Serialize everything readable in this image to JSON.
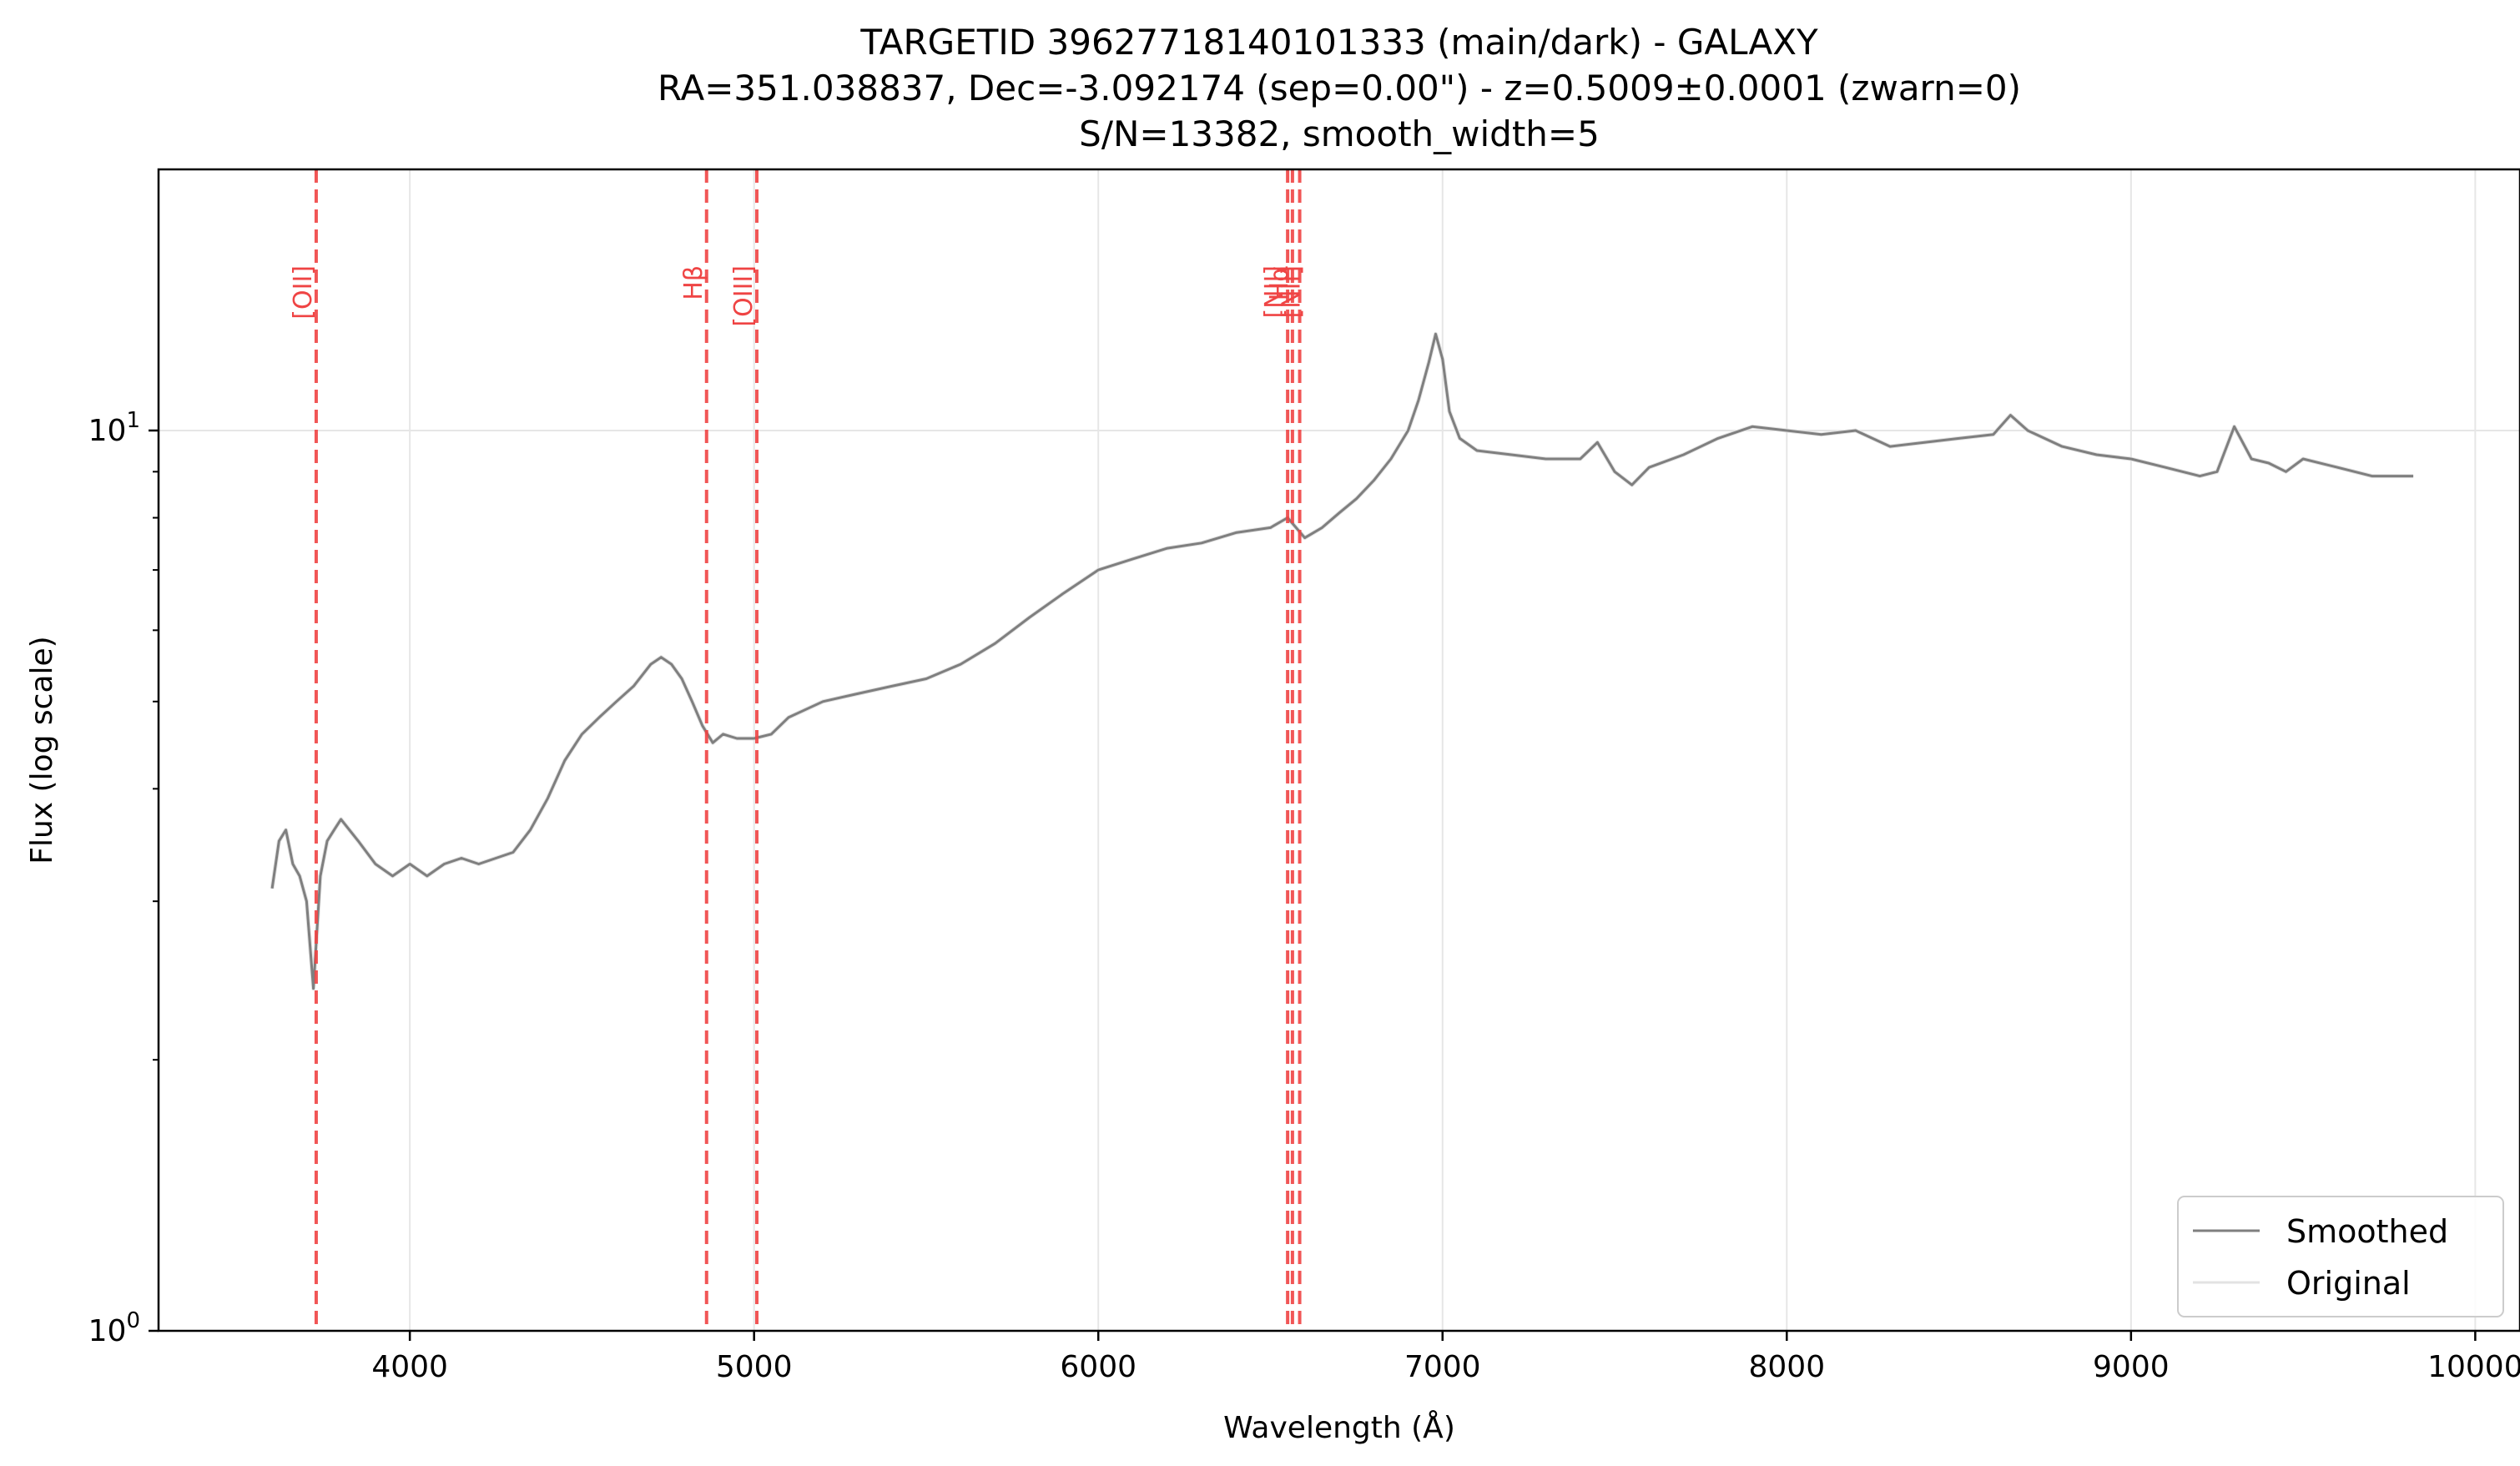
{
  "chart_data": {
    "type": "line",
    "title": [
      "TARGETID 39627718140101333 (main/dark) - GALAXY",
      "RA=351.038837, Dec=-3.092174 (sep=0.00\") - z=0.5009±0.0001 (zwarn=0)",
      "S/N=13382, smooth_width=5"
    ],
    "xlabel": "Wavelength (Å)",
    "ylabel": "Flux (log scale)",
    "xlim": [
      3270,
      10130
    ],
    "ylim": [
      1,
      19.5
    ],
    "yscale": "log",
    "grid": true,
    "x_ticks": [
      4000,
      5000,
      6000,
      7000,
      8000,
      9000,
      10000
    ],
    "x_tick_labels": [
      "4000",
      "5000",
      "6000",
      "7000",
      "8000",
      "9000",
      "10000"
    ],
    "y_ticks": [
      1,
      10
    ],
    "y_tick_base": "10",
    "y_tick_exponents": [
      "0",
      "1"
    ],
    "legend_position": "lower right",
    "series": [
      {
        "name": "Smoothed",
        "color": "#7f7f7f",
        "x": [
          3600,
          3620,
          3640,
          3660,
          3680,
          3700,
          3720,
          3740,
          3760,
          3780,
          3800,
          3850,
          3900,
          3950,
          4000,
          4050,
          4100,
          4150,
          4200,
          4250,
          4300,
          4350,
          4400,
          4450,
          4500,
          4550,
          4600,
          4650,
          4700,
          4730,
          4760,
          4790,
          4820,
          4850,
          4880,
          4910,
          4950,
          5000,
          5050,
          5100,
          5150,
          5200,
          5300,
          5400,
          5500,
          5600,
          5700,
          5800,
          5900,
          6000,
          6100,
          6200,
          6300,
          6400,
          6500,
          6550,
          6600,
          6650,
          6700,
          6750,
          6800,
          6850,
          6900,
          6930,
          6960,
          6980,
          7000,
          7020,
          7050,
          7100,
          7200,
          7300,
          7400,
          7450,
          7500,
          7550,
          7600,
          7700,
          7800,
          7900,
          8000,
          8100,
          8200,
          8300,
          8400,
          8500,
          8600,
          8650,
          8700,
          8800,
          8900,
          9000,
          9100,
          9200,
          9250,
          9300,
          9350,
          9400,
          9450,
          9500,
          9600,
          9700,
          9800,
          9820
        ],
        "y": [
          3.1,
          3.5,
          3.6,
          3.3,
          3.2,
          3.0,
          2.4,
          3.2,
          3.5,
          3.6,
          3.7,
          3.5,
          3.3,
          3.2,
          3.3,
          3.2,
          3.3,
          3.35,
          3.3,
          3.35,
          3.4,
          3.6,
          3.9,
          4.3,
          4.6,
          4.8,
          5.0,
          5.2,
          5.5,
          5.6,
          5.5,
          5.3,
          5.0,
          4.7,
          4.5,
          4.6,
          4.55,
          4.55,
          4.6,
          4.8,
          4.9,
          5.0,
          5.1,
          5.2,
          5.3,
          5.5,
          5.8,
          6.2,
          6.6,
          7.0,
          7.2,
          7.4,
          7.5,
          7.7,
          7.8,
          8.0,
          7.6,
          7.8,
          8.1,
          8.4,
          8.8,
          9.3,
          10.0,
          10.8,
          11.9,
          12.8,
          12.0,
          10.5,
          9.8,
          9.5,
          9.4,
          9.3,
          9.3,
          9.7,
          9.0,
          8.7,
          9.1,
          9.4,
          9.8,
          10.1,
          10.0,
          9.9,
          10.0,
          9.6,
          9.7,
          9.8,
          9.9,
          10.4,
          10.0,
          9.6,
          9.4,
          9.3,
          9.1,
          8.9,
          9.0,
          10.1,
          9.3,
          9.2,
          9.0,
          9.3,
          9.1,
          8.9,
          8.9,
          8.9
        ]
      },
      {
        "name": "Original",
        "color": "#e3e3e3",
        "x": [
          3600,
          3620,
          3640,
          3660,
          3680,
          3700,
          3720,
          3740,
          3760,
          3780,
          3800,
          3850,
          3900,
          3950,
          4000,
          4050,
          4100,
          4150,
          4200,
          4250,
          4300,
          4350,
          4400,
          4450,
          4500,
          4550,
          4600,
          4650,
          4700,
          4730,
          4760,
          4790,
          4820,
          4850,
          4880,
          4910,
          4950,
          5000,
          5050,
          5100,
          5150,
          5200,
          5300,
          5400,
          5500,
          5600,
          5700,
          5800,
          5900,
          6000,
          6100,
          6200,
          6300,
          6400,
          6500,
          6550,
          6600,
          6650,
          6700,
          6750,
          6800,
          6850,
          6900,
          6930,
          6960,
          6980,
          7000,
          7020,
          7050,
          7100,
          7200,
          7300,
          7400,
          7450,
          7500,
          7550,
          7600,
          7700,
          7800,
          7900,
          8000,
          8100,
          8200,
          8300,
          8400,
          8500,
          8600,
          8650,
          8700,
          8800,
          8900,
          9000,
          9100,
          9200,
          9250,
          9300,
          9350,
          9400,
          9450,
          9500,
          9600,
          9700,
          9800,
          9820
        ],
        "y": [
          3.1,
          3.5,
          3.6,
          3.3,
          3.2,
          3.0,
          2.4,
          3.2,
          3.5,
          3.6,
          3.7,
          3.5,
          3.3,
          3.2,
          3.3,
          3.2,
          3.3,
          3.35,
          3.3,
          3.35,
          3.4,
          3.6,
          3.9,
          4.3,
          4.6,
          4.8,
          5.0,
          5.2,
          5.5,
          5.6,
          5.5,
          5.3,
          5.0,
          4.7,
          4.5,
          4.6,
          4.55,
          4.55,
          4.6,
          4.8,
          4.9,
          5.0,
          5.1,
          5.2,
          5.3,
          5.5,
          5.8,
          6.2,
          6.6,
          7.0,
          7.2,
          7.4,
          7.5,
          7.7,
          7.8,
          8.0,
          7.6,
          7.8,
          8.1,
          8.4,
          8.8,
          9.3,
          10.0,
          10.8,
          11.9,
          12.8,
          12.0,
          10.5,
          9.8,
          9.5,
          9.4,
          9.3,
          9.3,
          9.7,
          9.0,
          8.7,
          9.1,
          9.4,
          9.8,
          10.1,
          10.0,
          9.9,
          10.0,
          9.6,
          9.7,
          9.8,
          9.9,
          10.4,
          10.0,
          9.6,
          9.4,
          9.3,
          9.1,
          8.9,
          9.0,
          10.1,
          9.3,
          9.2,
          9.0,
          9.3,
          9.1,
          8.9,
          8.9,
          8.9
        ]
      }
    ],
    "vlines": [
      {
        "label": "[OII]",
        "x": 3728
      },
      {
        "label": "Hβ",
        "x": 4862
      },
      {
        "label": "[OIII]",
        "x": 5008
      },
      {
        "label": "[NII]",
        "x": 6550
      },
      {
        "label": "Hα",
        "x": 6564
      },
      {
        "label": "[NII]",
        "x": 6585
      }
    ],
    "vline_color": "#ef4444"
  }
}
